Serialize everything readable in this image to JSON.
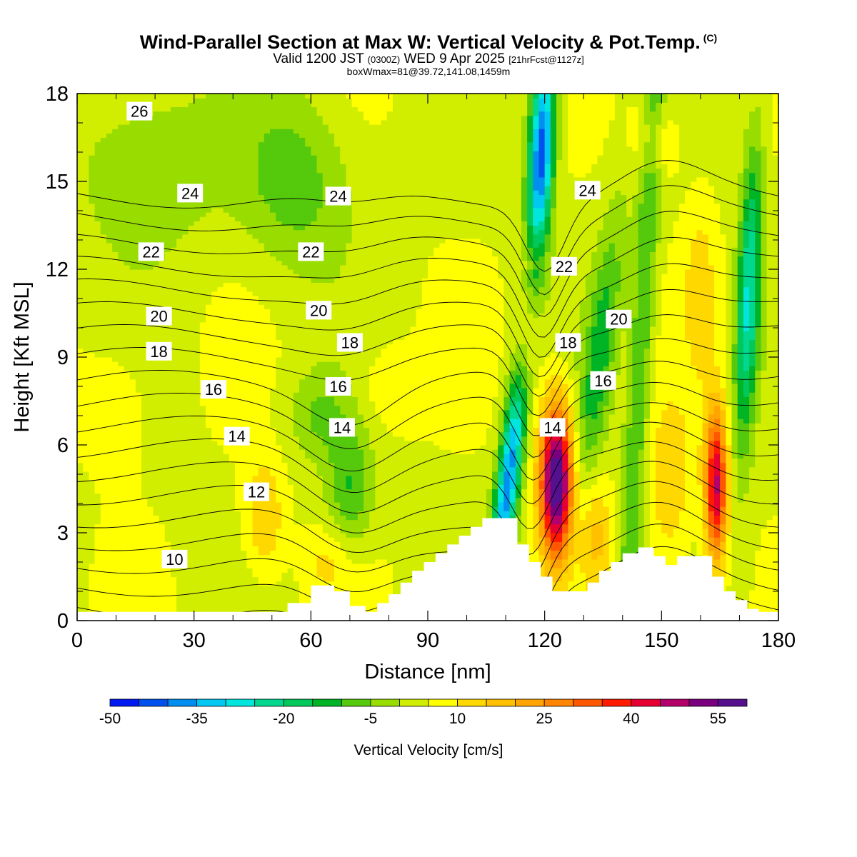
{
  "title": {
    "main": "Wind-Parallel Section at Max W: Vertical Velocity & Pot.Temp.",
    "copyright": "(C)",
    "valid_prefix": "Valid 1200 JST",
    "valid_utc": "(0300Z)",
    "valid_date": "WED 9 Apr 2025",
    "forecast": "[21hrFcst@1127z]",
    "box_info": "boxWmax=81@39.72,141.08,1459m"
  },
  "chart_data": {
    "type": "heatmap",
    "xlabel": "Distance [nm]",
    "ylabel": "Height [Kft MSL]",
    "xlim": [
      0,
      180
    ],
    "ylim": [
      0,
      18
    ],
    "x_ticks": [
      0,
      30,
      60,
      90,
      120,
      150,
      180
    ],
    "y_ticks": [
      0,
      3,
      6,
      9,
      12,
      15,
      18
    ],
    "x_tick_labels": [
      "0",
      "30",
      "60",
      "90",
      "120",
      "150",
      "180"
    ],
    "y_tick_labels": [
      "0",
      "3",
      "6",
      "9",
      "12",
      "15",
      "18"
    ],
    "colorbar": {
      "label": "Vertical Velocity [cm/s]",
      "tick_labels": [
        "-50",
        "-35",
        "-20",
        "-5",
        "10",
        "25",
        "40",
        "55"
      ],
      "tick_values": [
        -50,
        -35,
        -20,
        -5,
        10,
        25,
        40,
        55
      ],
      "bins": [
        -50,
        -45,
        -40,
        -35,
        -30,
        -25,
        -20,
        -15,
        -10,
        -5,
        0,
        5,
        10,
        15,
        20,
        25,
        30,
        35,
        40,
        45,
        50,
        55,
        60
      ],
      "colors": [
        "#0018f2",
        "#0050ee",
        "#008ef0",
        "#00c8f2",
        "#00e6dc",
        "#00d890",
        "#00c85a",
        "#00b425",
        "#55c90c",
        "#98dc00",
        "#d2ee00",
        "#ffff00",
        "#ffd800",
        "#ffc000",
        "#ffa400",
        "#ff8400",
        "#ff5600",
        "#ff1a00",
        "#e60032",
        "#b4006a",
        "#7a007f",
        "#55108e"
      ]
    },
    "theta_contours": {
      "labels": [
        "26",
        "24",
        "24",
        "24",
        "22",
        "22",
        "22",
        "20",
        "20",
        "20",
        "18",
        "18",
        "18",
        "16",
        "16",
        "16",
        "14",
        "14",
        "14",
        "12",
        "10"
      ],
      "label_positions_data": [
        [
          16,
          17.4
        ],
        [
          29,
          14.6
        ],
        [
          67,
          14.5
        ],
        [
          131,
          14.7
        ],
        [
          19,
          12.6
        ],
        [
          60,
          12.6
        ],
        [
          125,
          12.1
        ],
        [
          21,
          10.4
        ],
        [
          62,
          10.6
        ],
        [
          139,
          10.3
        ],
        [
          21,
          9.2
        ],
        [
          70,
          9.5
        ],
        [
          126,
          9.5
        ],
        [
          35,
          7.9
        ],
        [
          67,
          8.0
        ],
        [
          135,
          8.2
        ],
        [
          41,
          6.3
        ],
        [
          68,
          6.6
        ],
        [
          122,
          6.6
        ],
        [
          46,
          4.4
        ],
        [
          25,
          2.1
        ]
      ]
    },
    "velocity_features": [
      {
        "x": 123,
        "y": 4.8,
        "peak": 55
      },
      {
        "x": 164,
        "y": 4.6,
        "peak": 40
      },
      {
        "x": 110,
        "y": 4.5,
        "peak": -45
      },
      {
        "x": 119,
        "y": 16,
        "peak": -45
      }
    ],
    "terrain": {
      "x": [
        0,
        51,
        54,
        60,
        66,
        70,
        74,
        77,
        80,
        83,
        86,
        89,
        92,
        95,
        98,
        101,
        104,
        110,
        113,
        116,
        119,
        122,
        125,
        128,
        131,
        134,
        137,
        140,
        144,
        148,
        151,
        154,
        158,
        163,
        166,
        169,
        172,
        175,
        180
      ],
      "y": [
        0.3,
        0.3,
        0.6,
        1.2,
        1.0,
        0.5,
        0.3,
        0.6,
        0.9,
        1.3,
        1.7,
        2.0,
        2.3,
        2.6,
        2.9,
        3.2,
        3.5,
        3.5,
        2.6,
        2.0,
        1.5,
        1.0,
        1.0,
        1.0,
        1.3,
        1.7,
        2.0,
        2.3,
        2.5,
        2.2,
        1.9,
        2.2,
        2.2,
        1.5,
        1.0,
        0.7,
        0.4,
        0.3,
        0.3
      ]
    }
  }
}
